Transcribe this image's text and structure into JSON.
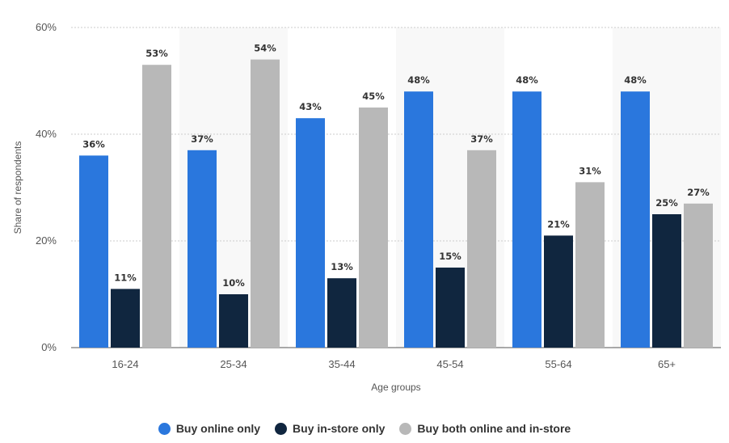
{
  "chart_data": {
    "type": "bar",
    "categories": [
      "16-24",
      "25-34",
      "35-44",
      "45-54",
      "55-64",
      "65+"
    ],
    "series": [
      {
        "name": "Buy online only",
        "color": "#2a77dd",
        "values": [
          36,
          37,
          43,
          48,
          48,
          48
        ]
      },
      {
        "name": "Buy in-store only",
        "color": "#10263f",
        "values": [
          11,
          10,
          13,
          15,
          21,
          25
        ]
      },
      {
        "name": "Buy both online and in-store",
        "color": "#b8b8b8",
        "values": [
          53,
          54,
          45,
          37,
          31,
          27
        ]
      }
    ],
    "value_suffix": "%",
    "xlabel": "Age groups",
    "ylabel": "Share of respondents",
    "ylim": [
      0,
      60
    ],
    "yticks": [
      "0%",
      "20%",
      "40%",
      "60%"
    ],
    "ytick_values": [
      0,
      20,
      40,
      60
    ],
    "grid": "horizontal dotted",
    "legend_position": "bottom"
  }
}
